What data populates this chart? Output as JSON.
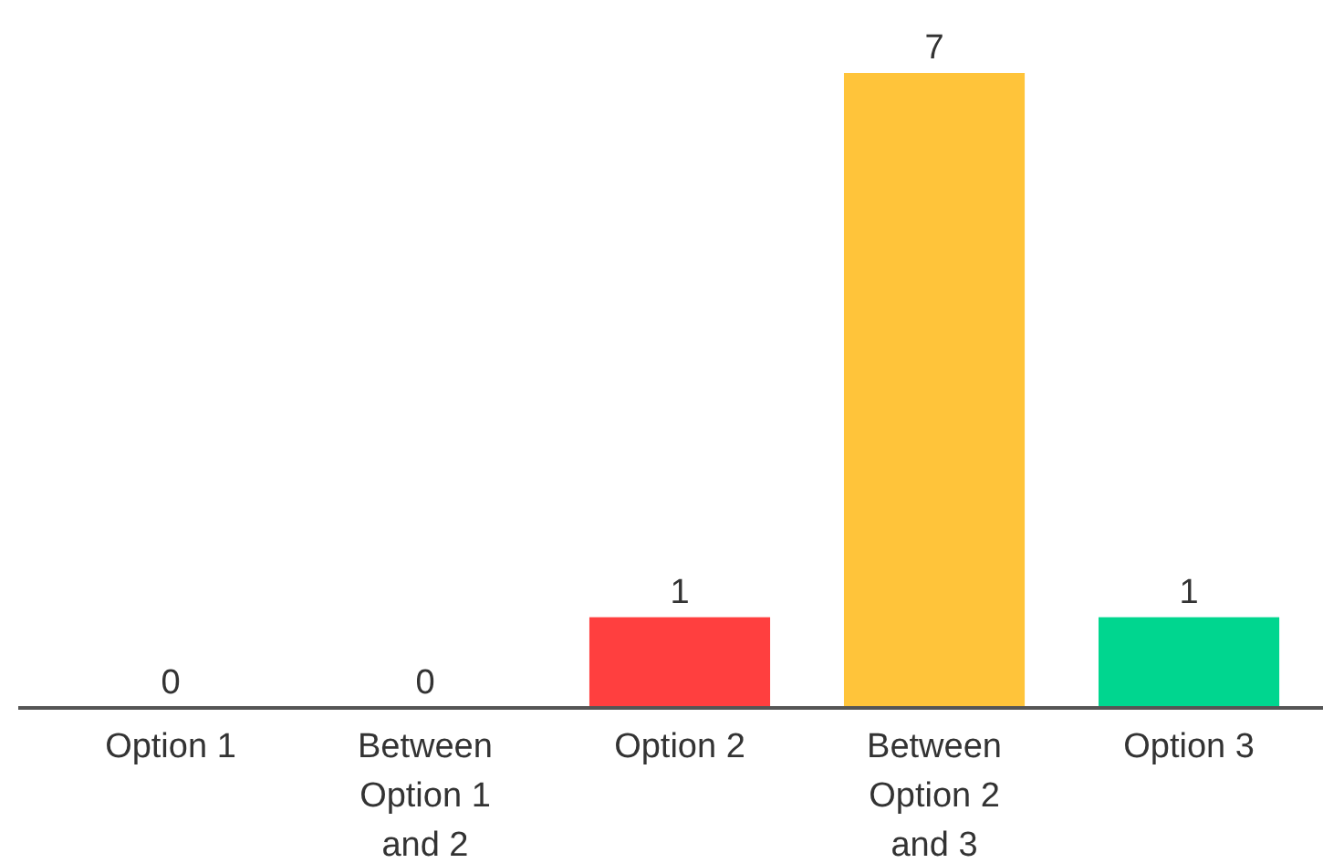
{
  "chart_data": {
    "type": "bar",
    "categories": [
      "Option 1",
      "Between Option 1 and 2",
      "Option 2",
      "Between Option 2 and 3",
      "Option 3"
    ],
    "values": [
      0,
      0,
      1,
      7,
      1
    ],
    "colors": [
      "#ff3f3f",
      "#ff3f3f",
      "#ff3f3f",
      "#ffc43a",
      "#00d68f"
    ],
    "data_labels": true
  }
}
